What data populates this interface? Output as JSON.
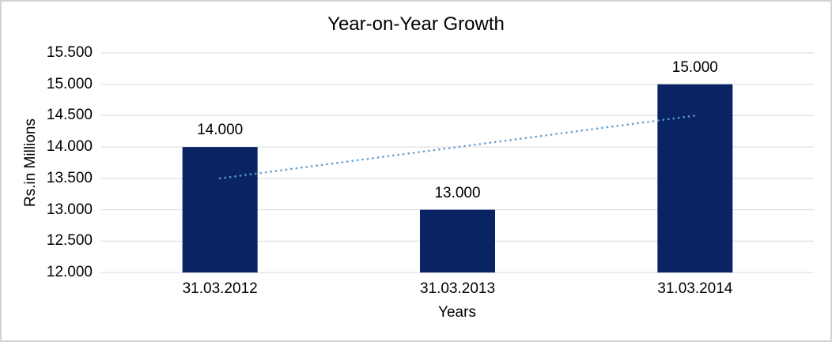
{
  "chart_data": {
    "type": "bar",
    "title": "Year-on-Year Growth",
    "xlabel": "Years",
    "ylabel": "Rs.in Millions",
    "categories": [
      "31.03.2012",
      "31.03.2013",
      "31.03.2014"
    ],
    "values": [
      14.0,
      13.0,
      15.0
    ],
    "data_labels": [
      "14.000",
      "13.000",
      "15.000"
    ],
    "y_ticks": [
      12.0,
      12.5,
      13.0,
      13.5,
      14.0,
      14.5,
      15.0,
      15.5
    ],
    "y_tick_labels": [
      "12.000",
      "12.500",
      "13.000",
      "13.500",
      "14.000",
      "14.500",
      "15.000",
      "15.500"
    ],
    "ylim": [
      12.0,
      15.5
    ],
    "grid": "horizontal",
    "legend": "none",
    "colors": {
      "bar": "#0a2463",
      "trendline": "#5b9bd5",
      "gridline": "#d9d9d9",
      "text": "#000000",
      "frame_border": "#d2d2d2",
      "background": "#ffffff"
    },
    "trendline": {
      "type": "linear",
      "style": "dotted",
      "color": "#5b9bd5",
      "start_category_index": 0,
      "end_category_index": 2,
      "start_value": 13.5,
      "end_value": 14.5
    }
  }
}
